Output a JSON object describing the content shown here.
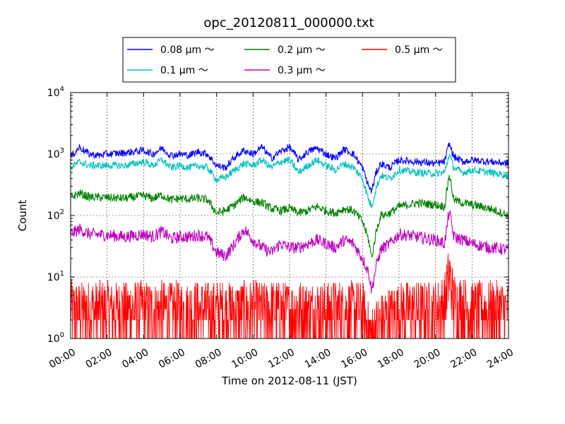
{
  "chart_data": {
    "type": "line",
    "title": "opc_20120811_000000.txt",
    "xlabel": "Time on 2012-08-11 (JST)",
    "ylabel": "Count",
    "yscale": "log",
    "ylim": [
      1,
      10000
    ],
    "y_ticks": [
      {
        "base": "10",
        "exp": "0",
        "value": 1
      },
      {
        "base": "10",
        "exp": "1",
        "value": 10
      },
      {
        "base": "10",
        "exp": "2",
        "value": 100
      },
      {
        "base": "10",
        "exp": "3",
        "value": 1000
      },
      {
        "base": "10",
        "exp": "4",
        "value": 10000
      }
    ],
    "xlim": [
      "00:00",
      "24:00"
    ],
    "x_ticks": [
      "00:00",
      "02:00",
      "04:00",
      "06:00",
      "08:00",
      "10:00",
      "12:00",
      "14:00",
      "16:00",
      "18:00",
      "20:00",
      "22:00",
      "24:00"
    ],
    "grid": true,
    "legend_position": "top-center",
    "series": [
      {
        "name": "0.08 μm ～",
        "color": "#0000ff",
        "x": [
          "00:00",
          "00:30",
          "01:00",
          "01:30",
          "02:00",
          "03:00",
          "04:00",
          "04:30",
          "05:00",
          "05:30",
          "06:00",
          "06:30",
          "07:00",
          "07:30",
          "08:00",
          "08:30",
          "09:00",
          "09:30",
          "10:00",
          "10:30",
          "11:00",
          "11:30",
          "12:00",
          "12:30",
          "13:00",
          "13:30",
          "14:00",
          "14:30",
          "15:00",
          "15:30",
          "16:00",
          "16:20",
          "16:30",
          "16:45",
          "17:00",
          "17:30",
          "18:00",
          "19:00",
          "20:00",
          "20:30",
          "20:45",
          "21:00",
          "21:30",
          "22:00",
          "23:00",
          "24:00"
        ],
        "y": [
          900,
          1300,
          1000,
          950,
          1000,
          1050,
          1150,
          1000,
          1250,
          950,
          1000,
          950,
          1100,
          1000,
          650,
          600,
          900,
          1150,
          1000,
          1300,
          850,
          1100,
          1300,
          800,
          1100,
          1250,
          1000,
          850,
          1200,
          1000,
          600,
          300,
          250,
          500,
          700,
          600,
          800,
          750,
          700,
          750,
          1500,
          900,
          750,
          800,
          750,
          700
        ]
      },
      {
        "name": "0.1 μm ～",
        "color": "#00bfbf",
        "x": [
          "00:00",
          "00:30",
          "01:00",
          "02:00",
          "03:00",
          "04:00",
          "04:30",
          "05:00",
          "05:30",
          "06:00",
          "06:30",
          "07:00",
          "07:30",
          "08:00",
          "08:30",
          "09:00",
          "09:30",
          "10:00",
          "10:30",
          "11:00",
          "11:30",
          "12:00",
          "12:30",
          "13:00",
          "13:30",
          "14:00",
          "14:30",
          "15:00",
          "15:30",
          "16:00",
          "16:20",
          "16:30",
          "16:45",
          "17:00",
          "17:30",
          "18:00",
          "19:00",
          "20:00",
          "20:30",
          "20:45",
          "21:00",
          "21:30",
          "22:00",
          "23:00",
          "24:00"
        ],
        "y": [
          600,
          750,
          650,
          650,
          650,
          750,
          650,
          800,
          600,
          650,
          600,
          650,
          600,
          380,
          420,
          550,
          700,
          650,
          800,
          600,
          750,
          800,
          500,
          650,
          800,
          650,
          550,
          700,
          600,
          400,
          180,
          140,
          280,
          450,
          400,
          550,
          500,
          480,
          500,
          1000,
          600,
          500,
          550,
          500,
          450
        ]
      },
      {
        "name": "0.2 μm ～",
        "color": "#008000",
        "x": [
          "00:00",
          "00:30",
          "01:00",
          "02:00",
          "03:00",
          "04:00",
          "04:30",
          "05:00",
          "05:30",
          "06:00",
          "06:30",
          "07:00",
          "07:30",
          "08:00",
          "08:30",
          "09:00",
          "09:30",
          "10:00",
          "10:30",
          "11:00",
          "11:30",
          "12:00",
          "12:30",
          "13:00",
          "13:30",
          "14:00",
          "14:30",
          "15:00",
          "15:30",
          "16:00",
          "16:20",
          "16:30",
          "16:45",
          "17:00",
          "17:30",
          "18:00",
          "19:00",
          "20:00",
          "20:30",
          "20:45",
          "21:00",
          "21:30",
          "22:00",
          "23:00",
          "24:00"
        ],
        "y": [
          200,
          230,
          200,
          195,
          190,
          210,
          190,
          215,
          180,
          190,
          185,
          190,
          180,
          110,
          120,
          150,
          200,
          170,
          160,
          130,
          120,
          130,
          110,
          120,
          140,
          120,
          110,
          130,
          120,
          80,
          40,
          20,
          55,
          100,
          110,
          140,
          160,
          150,
          140,
          480,
          180,
          160,
          150,
          130,
          100
        ]
      },
      {
        "name": "0.3 μm ～",
        "color": "#bf00bf",
        "x": [
          "00:00",
          "00:30",
          "01:00",
          "02:00",
          "03:00",
          "04:00",
          "04:30",
          "05:00",
          "05:30",
          "06:00",
          "06:30",
          "07:00",
          "07:30",
          "08:00",
          "08:30",
          "09:00",
          "09:30",
          "10:00",
          "10:30",
          "11:00",
          "11:30",
          "12:00",
          "12:30",
          "13:00",
          "13:30",
          "14:00",
          "14:30",
          "15:00",
          "15:30",
          "16:00",
          "16:20",
          "16:30",
          "16:45",
          "17:00",
          "17:30",
          "18:00",
          "19:00",
          "20:00",
          "20:30",
          "20:45",
          "21:00",
          "21:30",
          "22:00",
          "23:00",
          "24:00"
        ],
        "y": [
          50,
          60,
          50,
          48,
          45,
          50,
          45,
          55,
          42,
          45,
          45,
          48,
          45,
          25,
          22,
          35,
          60,
          40,
          30,
          25,
          35,
          30,
          30,
          35,
          40,
          35,
          30,
          40,
          35,
          20,
          12,
          6,
          15,
          28,
          35,
          50,
          45,
          40,
          35,
          120,
          45,
          40,
          35,
          30,
          28
        ]
      },
      {
        "name": "0.5 μm ～",
        "color": "#ff0000",
        "x": [
          "00:00",
          "01:00",
          "02:00",
          "03:00",
          "04:00",
          "05:00",
          "06:00",
          "07:00",
          "08:00",
          "09:00",
          "10:00",
          "11:00",
          "12:00",
          "13:00",
          "14:00",
          "15:00",
          "16:00",
          "16:30",
          "17:00",
          "18:00",
          "19:00",
          "20:00",
          "20:30",
          "20:45",
          "21:00",
          "22:00",
          "23:00",
          "24:00"
        ],
        "y": [
          3,
          3,
          3,
          3,
          3,
          3,
          3,
          3,
          3,
          3,
          3,
          3,
          3,
          3,
          3,
          3,
          3,
          1,
          2,
          3,
          3,
          3,
          4,
          12,
          4,
          3,
          3,
          3
        ]
      }
    ]
  }
}
